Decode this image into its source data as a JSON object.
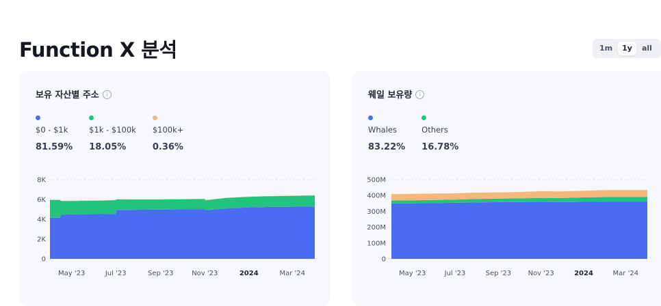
{
  "header": {
    "title": "Function X 분석"
  },
  "range_toggle": {
    "options": [
      "1m",
      "1y",
      "all"
    ],
    "active": "1y"
  },
  "colors": {
    "blue": "#4a6cf0",
    "green": "#22c47d",
    "orange": "#f5b87b"
  },
  "cards": [
    {
      "title": "보유 자산별 주소",
      "info_icon": "info-circle-icon",
      "legend": [
        {
          "label": "$0 - $1k",
          "value": "81.59%",
          "color": "#4a6cf0"
        },
        {
          "label": "$1k - $100k",
          "value": "18.05%",
          "color": "#22c47d"
        },
        {
          "label": "$100k+",
          "value": "0.36%",
          "color": "#f5b87b"
        }
      ]
    },
    {
      "title": "웨일 보유량",
      "info_icon": "info-circle-icon",
      "legend": [
        {
          "label": "Whales",
          "value": "83.22%",
          "color": "#4a6cf0"
        },
        {
          "label": "Others",
          "value": "16.78%",
          "color": "#22c47d"
        }
      ]
    }
  ],
  "chart_data": [
    {
      "type": "area",
      "stacked": true,
      "x_tick_labels": [
        "May '23",
        "Jul '23",
        "Sep '23",
        "Nov '23",
        "2024",
        "Mar '24"
      ],
      "x_tick_bold": [
        "2024"
      ],
      "y_tick_labels": [
        "0",
        "2K",
        "4K",
        "6K",
        "8K"
      ],
      "ylim": [
        0,
        8000
      ],
      "grid": "horizontal dotted",
      "x_dates": [
        "2023-04-01",
        "2023-04-15",
        "2023-04-16",
        "2023-05-01",
        "2023-06-15",
        "2023-07-01",
        "2023-07-02",
        "2023-08-01",
        "2023-09-01",
        "2023-10-01",
        "2023-11-01",
        "2023-11-02",
        "2023-12-01",
        "2024-01-01",
        "2024-02-01",
        "2024-03-01",
        "2024-04-01"
      ],
      "series": [
        {
          "name": "$0 - $1k",
          "color": "#4a6cf0",
          "values": [
            4150,
            4150,
            4450,
            4500,
            4520,
            4550,
            4950,
            4960,
            4980,
            5000,
            5000,
            4920,
            5100,
            5200,
            5250,
            5270,
            5300
          ]
        },
        {
          "name": "$1k - $100k",
          "color": "#22c47d",
          "values": [
            1800,
            1800,
            1400,
            1350,
            1370,
            1380,
            1050,
            1030,
            1010,
            1020,
            1040,
            1000,
            1050,
            1070,
            1080,
            1090,
            1100
          ]
        },
        {
          "name": "$100k+",
          "color": "#f5b87b",
          "values": [
            25,
            25,
            25,
            24,
            24,
            24,
            24,
            24,
            24,
            23,
            23,
            23,
            23,
            23,
            23,
            23,
            23
          ]
        }
      ]
    },
    {
      "type": "area",
      "stacked": true,
      "x_tick_labels": [
        "May '23",
        "Jul '23",
        "Sep '23",
        "Nov '23",
        "2024",
        "Mar '24"
      ],
      "x_tick_bold": [
        "2024"
      ],
      "y_tick_labels": [
        "0",
        "100M",
        "200M",
        "300M",
        "400M",
        "500M"
      ],
      "ylim": [
        0,
        500
      ],
      "y_unit": "M",
      "grid": "horizontal dotted",
      "x_dates": [
        "2023-04-01",
        "2023-05-01",
        "2023-06-01",
        "2023-07-01",
        "2023-08-01",
        "2023-09-01",
        "2023-10-01",
        "2023-11-01",
        "2023-12-01",
        "2024-01-01",
        "2024-02-01",
        "2024-03-01",
        "2024-04-01"
      ],
      "series": [
        {
          "name": "Whales",
          "color": "#4a6cf0",
          "values": [
            350,
            350,
            352,
            354,
            356,
            358,
            358,
            360,
            358,
            360,
            360,
            360,
            360
          ]
        },
        {
          "name": "Others",
          "color": "#22c47d",
          "values": [
            18,
            20,
            20,
            20,
            22,
            22,
            24,
            25,
            26,
            28,
            30,
            30,
            30
          ]
        },
        {
          "name": "",
          "color": "#f5b87b",
          "values": [
            40,
            40,
            40,
            40,
            40,
            40,
            40,
            42,
            42,
            42,
            44,
            44,
            44
          ]
        }
      ]
    }
  ]
}
